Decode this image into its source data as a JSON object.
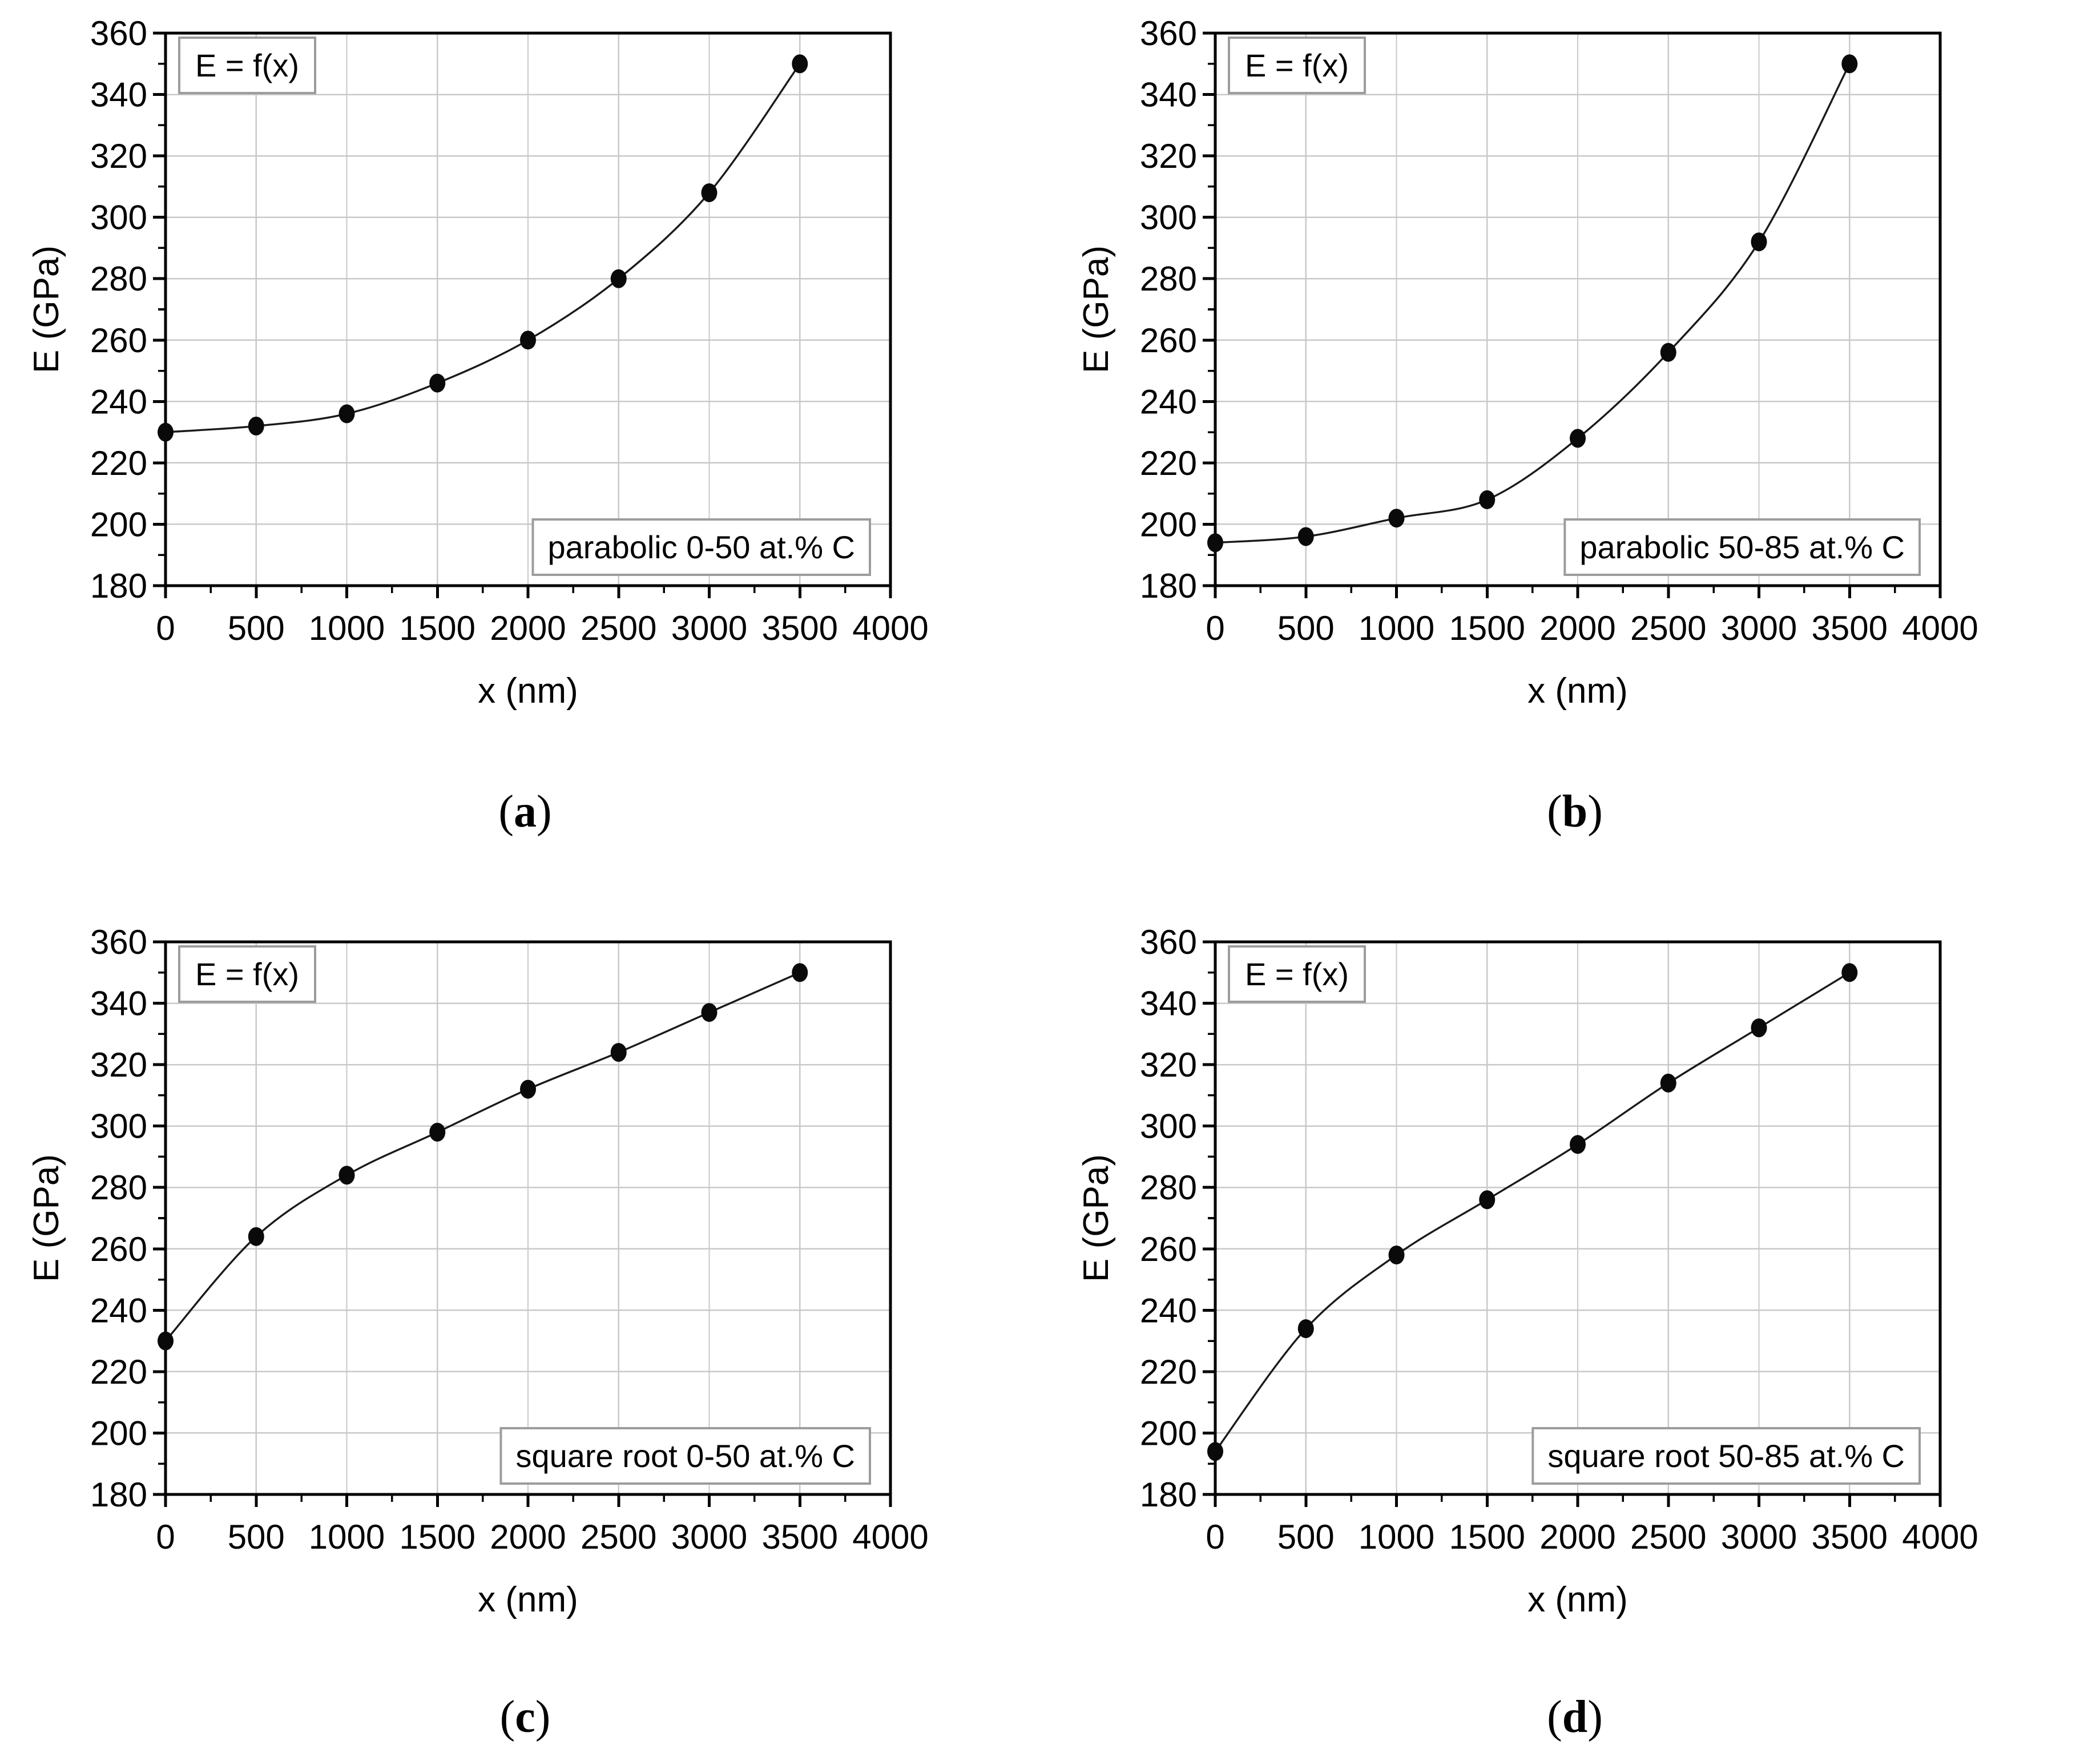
{
  "page": {
    "background": "#ffffff",
    "axis_color": "#000000",
    "grid_color": "#c9c9c9",
    "curve_color": "#1a1a1a",
    "marker_color": "#0a0a0a",
    "box_border_color": "#9c9c9c",
    "box_fill_color": "#ffffff"
  },
  "chart_data": [
    {
      "type": "scatter",
      "caption_open": "(",
      "caption_letter": "a",
      "caption_close": ")",
      "legend_label": "E = f(x)",
      "annotation": "parabolic 0-50 at.% C",
      "xlabel": "x (nm)",
      "ylabel": "E (GPa)",
      "xlim": [
        0,
        4000
      ],
      "ylim": [
        180,
        360
      ],
      "x_major": 500,
      "x_minor": 250,
      "y_major": 20,
      "y_minor": 10,
      "x_tick_labels": [
        0,
        500,
        1000,
        1500,
        2000,
        2500,
        3000,
        3500,
        4000
      ],
      "y_tick_labels": [
        180,
        200,
        220,
        240,
        260,
        280,
        300,
        320,
        340,
        360
      ],
      "grid": true,
      "legend_position": "top-left",
      "annotation_position": "bottom-right",
      "x": [
        0,
        500,
        1000,
        1500,
        2000,
        2500,
        3000,
        3500
      ],
      "y": [
        230,
        232,
        236,
        246,
        260,
        280,
        308,
        350
      ]
    },
    {
      "type": "scatter",
      "caption_open": "(",
      "caption_letter": "b",
      "caption_close": ")",
      "legend_label": "E = f(x)",
      "annotation": "parabolic 50-85 at.% C",
      "xlabel": "x (nm)",
      "ylabel": "E (GPa)",
      "xlim": [
        0,
        4000
      ],
      "ylim": [
        180,
        360
      ],
      "x_major": 500,
      "x_minor": 250,
      "y_major": 20,
      "y_minor": 10,
      "x_tick_labels": [
        0,
        500,
        1000,
        1500,
        2000,
        2500,
        3000,
        3500,
        4000
      ],
      "y_tick_labels": [
        180,
        200,
        220,
        240,
        260,
        280,
        300,
        320,
        340,
        360
      ],
      "grid": true,
      "legend_position": "top-left",
      "annotation_position": "bottom-right",
      "x": [
        0,
        500,
        1000,
        1500,
        2000,
        2500,
        3000,
        3500
      ],
      "y": [
        194,
        196,
        202,
        208,
        228,
        256,
        292,
        350
      ]
    },
    {
      "type": "scatter",
      "caption_open": "(",
      "caption_letter": "c",
      "caption_close": ")",
      "legend_label": "E = f(x)",
      "annotation": "square root 0-50 at.% C",
      "xlabel": "x (nm)",
      "ylabel": "E (GPa)",
      "xlim": [
        0,
        4000
      ],
      "ylim": [
        180,
        360
      ],
      "x_major": 500,
      "x_minor": 250,
      "y_major": 20,
      "y_minor": 10,
      "x_tick_labels": [
        0,
        500,
        1000,
        1500,
        2000,
        2500,
        3000,
        3500,
        4000
      ],
      "y_tick_labels": [
        180,
        200,
        220,
        240,
        260,
        280,
        300,
        320,
        340,
        360
      ],
      "grid": true,
      "legend_position": "top-left",
      "annotation_position": "bottom-right",
      "x": [
        0,
        500,
        1000,
        1500,
        2000,
        2500,
        3000,
        3500
      ],
      "y": [
        230,
        264,
        284,
        298,
        312,
        324,
        337,
        350
      ]
    },
    {
      "type": "scatter",
      "caption_open": "(",
      "caption_letter": "d",
      "caption_close": ")",
      "legend_label": "E = f(x)",
      "annotation": "square root 50-85 at.% C",
      "xlabel": "x (nm)",
      "ylabel": "E (GPa)",
      "xlim": [
        0,
        4000
      ],
      "ylim": [
        180,
        360
      ],
      "x_major": 500,
      "x_minor": 250,
      "y_major": 20,
      "y_minor": 10,
      "x_tick_labels": [
        0,
        500,
        1000,
        1500,
        2000,
        2500,
        3000,
        3500,
        4000
      ],
      "y_tick_labels": [
        180,
        200,
        220,
        240,
        260,
        280,
        300,
        320,
        340,
        360
      ],
      "grid": true,
      "legend_position": "top-left",
      "annotation_position": "bottom-right",
      "x": [
        0,
        500,
        1000,
        1500,
        2000,
        2500,
        3000,
        3500
      ],
      "y": [
        194,
        234,
        258,
        276,
        294,
        314,
        332,
        350
      ]
    }
  ]
}
